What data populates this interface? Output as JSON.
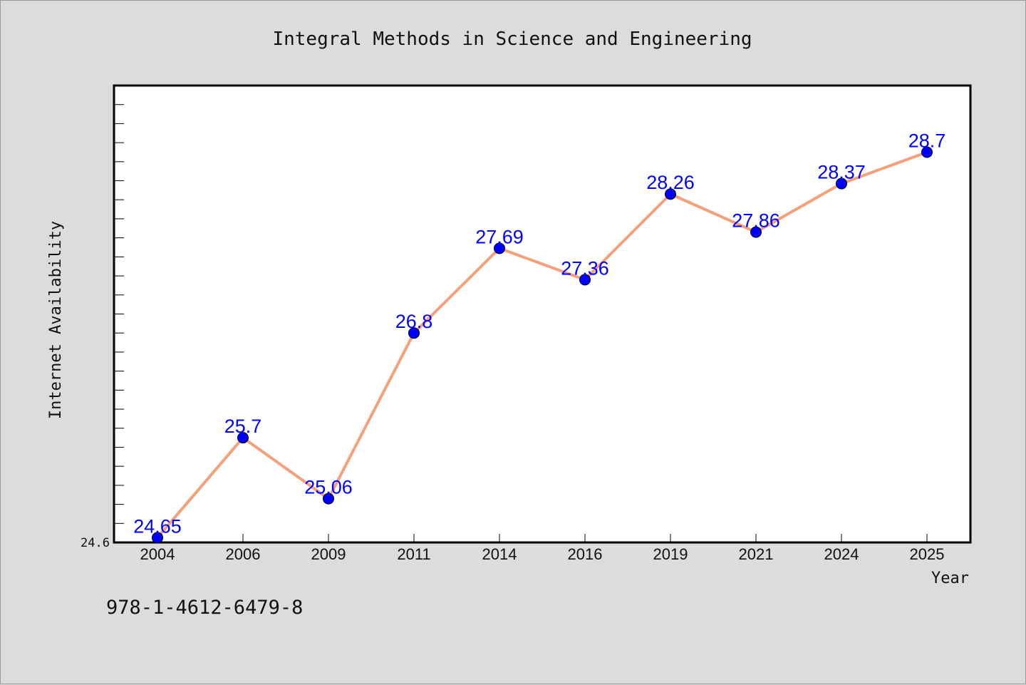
{
  "chart_data": {
    "type": "line",
    "title": "Integral Methods in Science and Engineering",
    "xlabel": "Year",
    "ylabel": "Internet Availability",
    "categories": [
      "2004",
      "2006",
      "2009",
      "2011",
      "2014",
      "2016",
      "2019",
      "2021",
      "2024",
      "2025"
    ],
    "values": [
      24.65,
      25.7,
      25.06,
      26.8,
      27.69,
      27.36,
      28.26,
      27.86,
      28.37,
      28.7
    ],
    "value_labels": [
      "24.65",
      "25.7",
      "25.06",
      "26.8",
      "27.69",
      "27.36",
      "28.26",
      "27.86",
      "28.37",
      "28.7"
    ],
    "ylim": [
      24.6,
      29.4
    ],
    "ytick_labels": [
      "24.6"
    ],
    "grid": false,
    "line_color": "#f4a07a",
    "marker_color": "#0000ff",
    "label_color": "#0000ff"
  },
  "footer": {
    "isbn": "978-1-4612-6479-8"
  }
}
